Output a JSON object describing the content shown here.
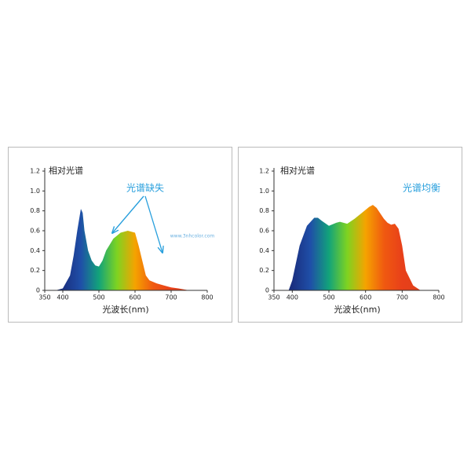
{
  "chart_data": [
    {
      "type": "area",
      "title": "相对光谱",
      "x_label": "光波长(nm)",
      "annotation": "光谱缺失",
      "watermark": "www.3nhcolor.com",
      "x": [
        380,
        400,
        420,
        430,
        440,
        450,
        455,
        460,
        470,
        480,
        490,
        500,
        510,
        520,
        540,
        560,
        580,
        600,
        610,
        620,
        630,
        640,
        660,
        680,
        700,
        720,
        750
      ],
      "values": [
        0,
        0.02,
        0.15,
        0.35,
        0.6,
        0.82,
        0.78,
        0.6,
        0.4,
        0.3,
        0.25,
        0.24,
        0.3,
        0.4,
        0.52,
        0.58,
        0.6,
        0.58,
        0.45,
        0.3,
        0.15,
        0.1,
        0.07,
        0.05,
        0.03,
        0.02,
        0
      ],
      "colors": [
        "#1a2a6c",
        "#1a2f80",
        "#1f4fa8",
        "#12a37a",
        "#7ed321",
        "#f5a300",
        "#f05a10",
        "#e8401a",
        "#e0401a",
        "#e0401a"
      ],
      "xlim": [
        350,
        800
      ],
      "xticks": [
        350,
        400,
        500,
        600,
        700,
        800
      ],
      "ylim": [
        0,
        1.2
      ],
      "yticks": [
        0,
        0.2,
        0.4,
        0.6,
        0.8,
        {
          "value": 1,
          "label": "1.0"
        },
        1.2
      ]
    },
    {
      "type": "area",
      "title": "相对光谱",
      "x_label": "光波长(nm)",
      "annotation": "光谱均衡",
      "x": [
        390,
        400,
        420,
        440,
        460,
        470,
        480,
        500,
        520,
        530,
        550,
        570,
        590,
        610,
        620,
        630,
        650,
        660,
        670,
        680,
        690,
        700,
        710,
        730,
        750
      ],
      "values": [
        0,
        0.1,
        0.45,
        0.65,
        0.73,
        0.73,
        0.7,
        0.65,
        0.68,
        0.69,
        0.67,
        0.72,
        0.78,
        0.84,
        0.86,
        0.83,
        0.72,
        0.68,
        0.66,
        0.67,
        0.62,
        0.45,
        0.2,
        0.05,
        0
      ],
      "colors": [
        "#1a2a6c",
        "#1a2f80",
        "#1f4fa8",
        "#12a37a",
        "#7ed321",
        "#f5a300",
        "#f05a10",
        "#e8401a",
        "#e0401a",
        "#e0401a"
      ],
      "xlim": [
        350,
        800
      ],
      "xticks": [
        350,
        400,
        500,
        600,
        700,
        800
      ],
      "ylim": [
        0,
        1.2
      ],
      "yticks": [
        0,
        0.2,
        0.4,
        0.6,
        0.8,
        {
          "value": 1,
          "label": "1.0"
        },
        1.2
      ]
    }
  ]
}
